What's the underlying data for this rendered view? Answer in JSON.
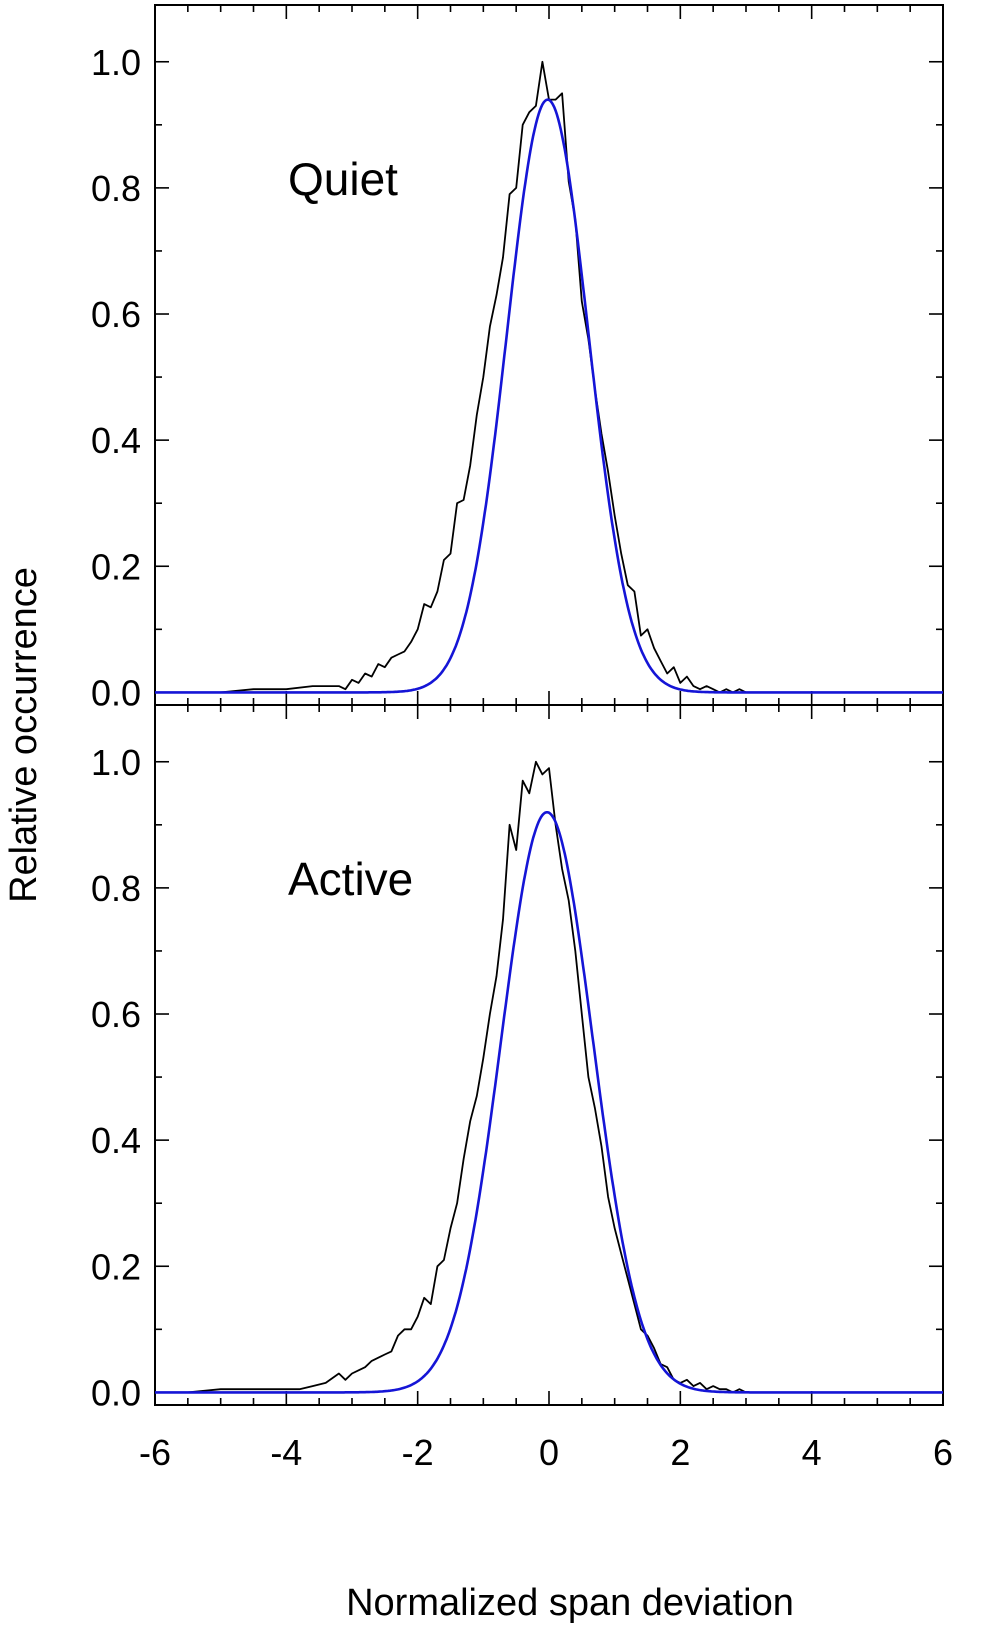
{
  "chart_data": [
    {
      "type": "line",
      "panel": "top",
      "annotation": "Quiet",
      "xlim": [
        -6,
        6
      ],
      "ylim": [
        -0.02,
        1.09
      ],
      "xticks": [
        -6,
        -4,
        -2,
        0,
        2,
        4,
        6
      ],
      "yticks": [
        0.0,
        0.2,
        0.4,
        0.6,
        0.8,
        1.0
      ],
      "ytick_labels": [
        "0.0",
        "0.2",
        "0.4",
        "0.6",
        "0.8",
        "1.0"
      ],
      "series": [
        {
          "name": "histogram",
          "color": "#000000",
          "x": [
            -6,
            -5.5,
            -5,
            -4.5,
            -4,
            -3.6,
            -3.4,
            -3.2,
            -3.1,
            -3.0,
            -2.9,
            -2.8,
            -2.7,
            -2.6,
            -2.5,
            -2.4,
            -2.3,
            -2.2,
            -2.1,
            -2.0,
            -1.9,
            -1.8,
            -1.7,
            -1.6,
            -1.5,
            -1.4,
            -1.3,
            -1.2,
            -1.1,
            -1.0,
            -0.9,
            -0.8,
            -0.7,
            -0.6,
            -0.5,
            -0.4,
            -0.3,
            -0.2,
            -0.1,
            0.0,
            0.1,
            0.2,
            0.3,
            0.4,
            0.5,
            0.6,
            0.7,
            0.8,
            0.9,
            1.0,
            1.1,
            1.2,
            1.3,
            1.4,
            1.5,
            1.6,
            1.7,
            1.8,
            1.9,
            2.0,
            2.1,
            2.2,
            2.3,
            2.4,
            2.5,
            2.6,
            2.7,
            2.8,
            2.9,
            3.0,
            3.2,
            3.5,
            4.0,
            4.5,
            5.0,
            5.5,
            6.0
          ],
          "y": [
            0.0,
            0.0,
            0.0,
            0.005,
            0.005,
            0.01,
            0.01,
            0.01,
            0.005,
            0.02,
            0.015,
            0.03,
            0.025,
            0.045,
            0.04,
            0.055,
            0.06,
            0.065,
            0.08,
            0.1,
            0.14,
            0.135,
            0.16,
            0.21,
            0.22,
            0.3,
            0.305,
            0.36,
            0.44,
            0.5,
            0.58,
            0.63,
            0.69,
            0.79,
            0.8,
            0.9,
            0.92,
            0.93,
            1.0,
            0.94,
            0.94,
            0.95,
            0.81,
            0.75,
            0.62,
            0.56,
            0.48,
            0.41,
            0.35,
            0.28,
            0.22,
            0.17,
            0.16,
            0.09,
            0.1,
            0.07,
            0.05,
            0.03,
            0.04,
            0.015,
            0.025,
            0.01,
            0.005,
            0.01,
            0.005,
            0.0,
            0.005,
            0.0,
            0.005,
            0.0,
            0.0,
            0.0,
            0.0,
            0.0,
            0.0,
            0.0,
            0.0
          ]
        },
        {
          "name": "gaussian fit",
          "color": "#1515d6",
          "amplitude": 0.94,
          "center": -0.02,
          "sigma": 0.62
        }
      ]
    },
    {
      "type": "line",
      "panel": "bottom",
      "annotation": "Active",
      "xlim": [
        -6,
        6
      ],
      "ylim": [
        -0.02,
        1.09
      ],
      "xticks": [
        -6,
        -4,
        -2,
        0,
        2,
        4,
        6
      ],
      "xtick_labels": [
        "-6",
        "-4",
        "-2",
        "0",
        "2",
        "4",
        "6"
      ],
      "yticks": [
        0.0,
        0.2,
        0.4,
        0.6,
        0.8,
        1.0
      ],
      "ytick_labels": [
        "0.0",
        "0.2",
        "0.4",
        "0.6",
        "0.8",
        "1.0"
      ],
      "series": [
        {
          "name": "histogram",
          "color": "#000000",
          "x": [
            -6,
            -5.5,
            -5,
            -4.5,
            -4,
            -3.8,
            -3.6,
            -3.4,
            -3.2,
            -3.1,
            -3.0,
            -2.9,
            -2.8,
            -2.7,
            -2.6,
            -2.5,
            -2.4,
            -2.3,
            -2.2,
            -2.1,
            -2.0,
            -1.9,
            -1.8,
            -1.7,
            -1.6,
            -1.5,
            -1.4,
            -1.3,
            -1.2,
            -1.1,
            -1.0,
            -0.9,
            -0.8,
            -0.7,
            -0.6,
            -0.5,
            -0.4,
            -0.3,
            -0.2,
            -0.1,
            0.0,
            0.1,
            0.2,
            0.3,
            0.4,
            0.5,
            0.6,
            0.7,
            0.8,
            0.9,
            1.0,
            1.1,
            1.2,
            1.3,
            1.4,
            1.5,
            1.6,
            1.7,
            1.8,
            1.9,
            2.0,
            2.1,
            2.2,
            2.3,
            2.4,
            2.5,
            2.6,
            2.7,
            2.8,
            2.9,
            3.0,
            3.2,
            3.5,
            4.0,
            4.5,
            5.0,
            5.5,
            6.0
          ],
          "y": [
            0.0,
            0.0,
            0.005,
            0.005,
            0.005,
            0.005,
            0.01,
            0.015,
            0.03,
            0.02,
            0.03,
            0.035,
            0.04,
            0.05,
            0.055,
            0.06,
            0.065,
            0.09,
            0.1,
            0.1,
            0.12,
            0.15,
            0.14,
            0.2,
            0.21,
            0.26,
            0.3,
            0.37,
            0.43,
            0.47,
            0.53,
            0.6,
            0.66,
            0.75,
            0.9,
            0.86,
            0.97,
            0.95,
            1.0,
            0.98,
            0.99,
            0.9,
            0.83,
            0.78,
            0.7,
            0.6,
            0.5,
            0.45,
            0.39,
            0.31,
            0.26,
            0.22,
            0.18,
            0.14,
            0.1,
            0.09,
            0.07,
            0.045,
            0.04,
            0.02,
            0.015,
            0.02,
            0.01,
            0.015,
            0.005,
            0.01,
            0.005,
            0.005,
            0.0,
            0.005,
            0.0,
            0.0,
            0.0,
            0.0,
            0.0,
            0.0,
            0.0,
            0.0
          ]
        },
        {
          "name": "gaussian fit",
          "color": "#1515d6",
          "amplitude": 0.92,
          "center": -0.03,
          "sigma": 0.7
        }
      ]
    }
  ],
  "axes": {
    "xlabel": "Normalized span deviation",
    "ylabel": "Relative occurrence"
  }
}
